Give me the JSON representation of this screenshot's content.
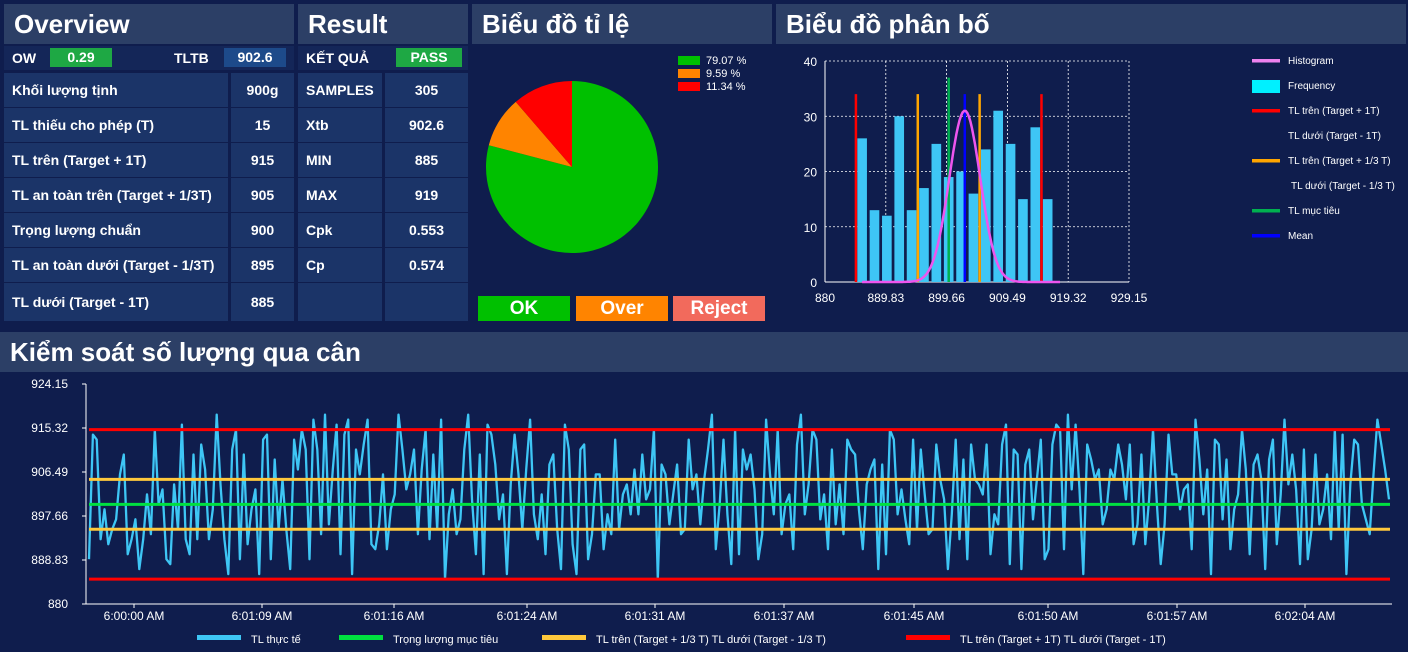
{
  "overview": {
    "title": "Overview",
    "ow_label": "OW",
    "ow_value": "0.29",
    "tltb_label": "TLTB",
    "tltb_value": "902.6",
    "rows": [
      {
        "label": "Khối lượng tịnh",
        "value": "900g"
      },
      {
        "label": "TL thiếu cho phép (T)",
        "value": "15"
      },
      {
        "label": "TL trên (Target + 1T)",
        "value": "915"
      },
      {
        "label": "TL an toàn trên (Target + 1/3T)",
        "value": "905"
      },
      {
        "label": "Trọng lượng chuẩn",
        "value": "900"
      },
      {
        "label": "TL an toàn dưới (Target - 1/3T)",
        "value": "895"
      },
      {
        "label": "TL dưới (Target - 1T)",
        "value": "885"
      }
    ]
  },
  "result": {
    "title": "Result",
    "status_label": "KẾT QUẢ",
    "status_value": "PASS",
    "rows": [
      {
        "label": "SAMPLES",
        "value": "305"
      },
      {
        "label": "Xtb",
        "value": "902.6"
      },
      {
        "label": "MIN",
        "value": "885"
      },
      {
        "label": "MAX",
        "value": "919"
      },
      {
        "label": "Cpk",
        "value": "0.553"
      },
      {
        "label": "Cp",
        "value": "0.574"
      },
      {
        "label": "",
        "value": ""
      }
    ]
  },
  "ratio": {
    "title": "Biểu đồ tỉ lệ",
    "buttons": {
      "ok": "OK",
      "over": "Over",
      "reject": "Reject"
    },
    "colors": {
      "ok": "#00c000",
      "over": "#ff8400",
      "reject": "#ff0000",
      "reject_button": "#f26a5c"
    }
  },
  "distribution": {
    "title": "Biểu đồ phân bố",
    "legend": [
      {
        "label": "Histogram",
        "color": "#ee82ee",
        "kind": "line"
      },
      {
        "label": "Frequency",
        "color": "#00f0ff",
        "kind": "box"
      },
      {
        "label": "TL trên (Target + 1T)",
        "color": "#ff0000",
        "kind": "line"
      },
      {
        "label": "TL dưới (Target - 1T)",
        "color": "",
        "kind": "none"
      },
      {
        "label": "TL trên (Target + 1/3 T)",
        "color": "#ffa500",
        "kind": "line"
      },
      {
        "label": "TL dưới (Target - 1/3 T)",
        "color": "",
        "kind": "none"
      },
      {
        "label": "TL mục tiêu",
        "color": "#00b050",
        "kind": "line"
      },
      {
        "label": "Mean",
        "color": "#0000ff",
        "kind": "line"
      }
    ]
  },
  "trend": {
    "title": "Kiểm soát số lượng qua cân",
    "legend": [
      {
        "label": "TL thực tế",
        "color": "#3ec6f5"
      },
      {
        "label": "Trọng lượng mục tiêu",
        "color": "#00e040"
      },
      {
        "label": "TL trên (Target + 1/3 T)  TL dưới (Target - 1/3 T)",
        "color": "#ffc83c"
      },
      {
        "label": "TL trên (Target + 1T)  TL dưới (Target - 1T)",
        "color": "#ff0000"
      }
    ]
  },
  "chart_data": [
    {
      "type": "pie",
      "labels": [
        "79.07 %",
        "9.59 %",
        "11.34 %"
      ],
      "values": [
        79.07,
        9.59,
        11.34
      ],
      "colors": [
        "#00c000",
        "#ff8400",
        "#ff0000"
      ]
    },
    {
      "type": "bar",
      "x_bins": [
        886,
        888,
        890,
        892,
        894,
        896,
        898,
        900,
        902,
        904,
        906,
        908,
        910,
        912,
        914,
        916,
        918
      ],
      "values": [
        26,
        13,
        12,
        30,
        13,
        17,
        25,
        19,
        20,
        16,
        24,
        31,
        25,
        15,
        28,
        15,
        0
      ],
      "xticks": [
        "880",
        "889.83",
        "899.66",
        "909.49",
        "919.32",
        "929.15"
      ],
      "xlim": [
        880,
        929.15
      ],
      "yticks": [
        "0",
        "10",
        "20",
        "30",
        "40"
      ],
      "ylim": [
        0,
        40
      ],
      "vlines": {
        "upper_1T": 915,
        "lower_1T": 885,
        "upper_13T": 905,
        "lower_13T": 895,
        "target": 900,
        "mean": 902.6
      },
      "normal_curve": {
        "mean": 902.6,
        "sd": 2.5,
        "peak": 31
      },
      "grid": true
    },
    {
      "type": "line",
      "yticks": [
        "924.15",
        "915.32",
        "906.49",
        "897.66",
        "888.83",
        "880"
      ],
      "ylim": [
        880,
        924.15
      ],
      "xticks": [
        "6:00:00 AM",
        "6:01:09 AM",
        "6:01:16 AM",
        "6:01:24 AM",
        "6:01:31 AM",
        "6:01:37 AM",
        "6:01:45 AM",
        "6:01:50 AM",
        "6:01:57 AM",
        "6:02:04 AM"
      ],
      "hlines": {
        "upper_1T": 915,
        "lower_1T": 885,
        "upper_13T": 905,
        "lower_13T": 895,
        "target": 900
      },
      "series_name": "TL thực tế",
      "values": [
        889,
        914,
        913,
        893,
        899,
        892,
        895,
        897,
        906,
        910,
        890,
        893,
        897,
        887,
        893,
        902,
        894,
        915,
        900,
        903,
        889,
        888,
        904,
        895,
        916,
        893,
        890,
        910,
        893,
        912,
        907,
        893,
        899,
        918,
        904,
        893,
        886,
        911,
        915,
        889,
        910,
        892,
        899,
        903,
        886,
        913,
        914,
        889,
        909,
        895,
        905,
        895,
        887,
        913,
        907,
        915,
        911,
        889,
        917,
        911,
        894,
        918,
        896,
        907,
        916,
        890,
        914,
        917,
        886,
        911,
        906,
        912,
        917,
        892,
        891,
        896,
        906,
        891,
        899,
        902,
        918,
        911,
        903,
        906,
        911,
        894,
        907,
        915,
        893,
        910,
        895,
        917,
        885,
        898,
        903,
        894,
        897,
        911,
        918,
        901,
        890,
        910,
        886,
        916,
        914,
        908,
        897,
        902,
        886,
        904,
        914,
        906,
        895,
        907,
        917,
        898,
        893,
        902,
        890,
        908,
        910,
        895,
        887,
        916,
        911,
        892,
        886,
        911,
        912,
        889,
        894,
        906,
        906,
        891,
        898,
        894,
        913,
        895,
        902,
        904,
        898,
        907,
        898,
        910,
        901,
        903,
        915,
        885,
        908,
        906,
        896,
        902,
        908,
        894,
        895,
        913,
        903,
        906,
        896,
        905,
        911,
        918,
        891,
        900,
        913,
        898,
        888,
        915,
        890,
        911,
        907,
        910,
        903,
        889,
        894,
        917,
        906,
        898,
        915,
        894,
        900,
        902,
        891,
        912,
        918,
        898,
        904,
        915,
        913,
        897,
        902,
        891,
        911,
        896,
        904,
        894,
        913,
        911,
        910,
        899,
        891,
        904,
        907,
        909,
        887,
        908,
        890,
        915,
        913,
        898,
        903,
        897,
        892,
        913,
        895,
        911,
        902,
        894,
        895,
        912,
        905,
        901,
        887,
        898,
        913,
        893,
        909,
        889,
        912,
        905,
        904,
        902,
        912,
        890,
        898,
        896,
        912,
        916,
        888,
        911,
        910,
        887,
        908,
        911,
        897,
        905,
        913,
        889,
        891,
        912,
        916,
        915,
        891,
        918,
        903,
        916,
        903,
        886,
        912,
        909,
        905,
        907,
        896,
        899,
        907,
        905,
        912,
        908,
        901,
        912,
        892,
        896,
        910,
        892,
        901,
        915,
        900,
        888,
        896,
        914,
        906,
        906,
        899,
        903,
        904,
        891,
        917,
        909,
        898,
        907,
        886,
        913,
        912,
        897,
        909,
        891,
        899,
        902,
        915,
        907,
        890,
        908,
        910,
        905,
        887,
        909,
        913,
        892,
        902,
        917,
        904,
        910,
        903,
        888,
        911,
        889,
        895,
        910,
        896,
        899,
        906,
        893,
        915,
        895,
        914,
        886,
        904,
        913,
        912,
        900,
        897,
        894,
        906,
        917,
        912,
        907,
        901
      ]
    }
  ]
}
